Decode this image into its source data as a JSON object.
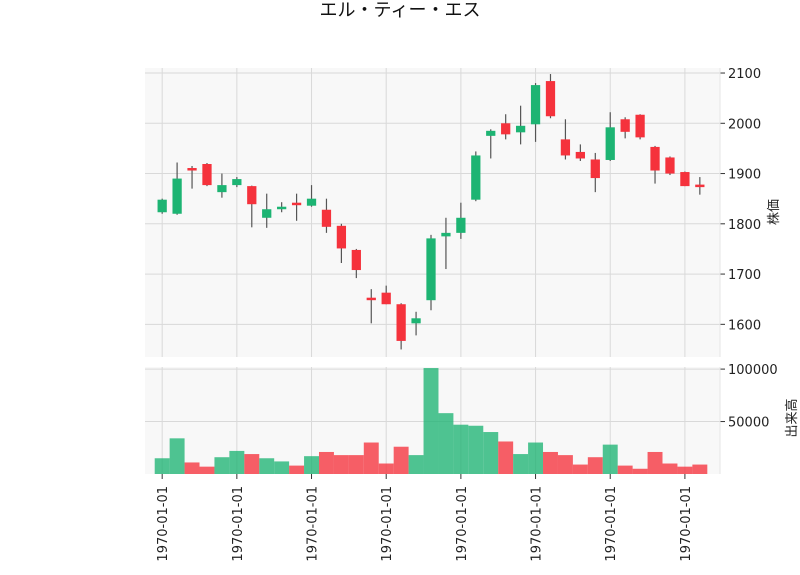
{
  "chart_data": {
    "type": "candlestick",
    "title": "エル・ティー・エス",
    "ylabel_price": "株価",
    "ylabel_volume": "出来高",
    "price_ticks": [
      1600,
      1700,
      1800,
      1900,
      2000,
      2100
    ],
    "price_ylim": [
      1535,
      2110
    ],
    "volume_ticks": [
      50000,
      100000
    ],
    "volume_ylim": [
      0,
      102000
    ],
    "x_tick_label": "1970-01-01",
    "x_tick_indices": [
      0,
      5,
      10,
      15,
      20,
      25,
      30,
      35
    ],
    "grid": true,
    "colors": {
      "up": "#1db473",
      "down": "#f5323c",
      "wick": "#555555",
      "panel_bg": "#f8f8f8",
      "grid": "#d9d9d9"
    },
    "candles": [
      {
        "open": 1823,
        "high": 1850,
        "low": 1820,
        "close": 1848,
        "volume": 15000
      },
      {
        "open": 1820,
        "high": 1922,
        "low": 1818,
        "close": 1890,
        "volume": 34000
      },
      {
        "open": 1911,
        "high": 1915,
        "low": 1870,
        "close": 1909,
        "volume": 11000
      },
      {
        "open": 1919,
        "high": 1921,
        "low": 1875,
        "close": 1877,
        "volume": 7000
      },
      {
        "open": 1863,
        "high": 1900,
        "low": 1852,
        "close": 1877,
        "volume": 16000
      },
      {
        "open": 1877,
        "high": 1893,
        "low": 1873,
        "close": 1889,
        "volume": 22000
      },
      {
        "open": 1875,
        "high": 1876,
        "low": 1793,
        "close": 1839,
        "volume": 19000
      },
      {
        "open": 1812,
        "high": 1860,
        "low": 1792,
        "close": 1829,
        "volume": 15000
      },
      {
        "open": 1829,
        "high": 1843,
        "low": 1823,
        "close": 1834,
        "volume": 12000
      },
      {
        "open": 1842,
        "high": 1860,
        "low": 1806,
        "close": 1838,
        "volume": 8000
      },
      {
        "open": 1836,
        "high": 1877,
        "low": 1834,
        "close": 1850,
        "volume": 17000
      },
      {
        "open": 1828,
        "high": 1850,
        "low": 1782,
        "close": 1794,
        "volume": 21000
      },
      {
        "open": 1796,
        "high": 1800,
        "low": 1722,
        "close": 1751,
        "volume": 18000
      },
      {
        "open": 1748,
        "high": 1750,
        "low": 1692,
        "close": 1708,
        "volume": 18000
      },
      {
        "open": 1653,
        "high": 1670,
        "low": 1602,
        "close": 1650,
        "volume": 30000
      },
      {
        "open": 1663,
        "high": 1677,
        "low": 1640,
        "close": 1640,
        "volume": 10000
      },
      {
        "open": 1640,
        "high": 1642,
        "low": 1550,
        "close": 1567,
        "volume": 26000
      },
      {
        "open": 1602,
        "high": 1625,
        "low": 1578,
        "close": 1612,
        "volume": 18000
      },
      {
        "open": 1648,
        "high": 1778,
        "low": 1628,
        "close": 1771,
        "volume": 101000
      },
      {
        "open": 1775,
        "high": 1812,
        "low": 1710,
        "close": 1782,
        "volume": 58000
      },
      {
        "open": 1782,
        "high": 1842,
        "low": 1770,
        "close": 1812,
        "volume": 47000
      },
      {
        "open": 1848,
        "high": 1944,
        "low": 1845,
        "close": 1936,
        "volume": 46000
      },
      {
        "open": 1975,
        "high": 1988,
        "low": 1930,
        "close": 1985,
        "volume": 40000
      },
      {
        "open": 2000,
        "high": 2018,
        "low": 1968,
        "close": 1978,
        "volume": 31000
      },
      {
        "open": 1982,
        "high": 2035,
        "low": 1958,
        "close": 1995,
        "volume": 19000
      },
      {
        "open": 1998,
        "high": 2080,
        "low": 1963,
        "close": 2076,
        "volume": 30000
      },
      {
        "open": 2084,
        "high": 2098,
        "low": 2010,
        "close": 2014,
        "volume": 21000
      },
      {
        "open": 1968,
        "high": 2008,
        "low": 1928,
        "close": 1936,
        "volume": 18000
      },
      {
        "open": 1943,
        "high": 1958,
        "low": 1925,
        "close": 1930,
        "volume": 9000
      },
      {
        "open": 1928,
        "high": 1941,
        "low": 1863,
        "close": 1891,
        "volume": 16000
      },
      {
        "open": 1927,
        "high": 2022,
        "low": 1925,
        "close": 1992,
        "volume": 28000
      },
      {
        "open": 2008,
        "high": 2012,
        "low": 1970,
        "close": 1983,
        "volume": 8000
      },
      {
        "open": 2017,
        "high": 2018,
        "low": 1968,
        "close": 1972,
        "volume": 5000
      },
      {
        "open": 1953,
        "high": 1955,
        "low": 1880,
        "close": 1906,
        "volume": 21000
      },
      {
        "open": 1932,
        "high": 1934,
        "low": 1897,
        "close": 1900,
        "volume": 10000
      },
      {
        "open": 1903,
        "high": 1904,
        "low": 1875,
        "close": 1875,
        "volume": 7000
      },
      {
        "open": 1878,
        "high": 1893,
        "low": 1858,
        "close": 1873,
        "volume": 9000
      }
    ]
  }
}
